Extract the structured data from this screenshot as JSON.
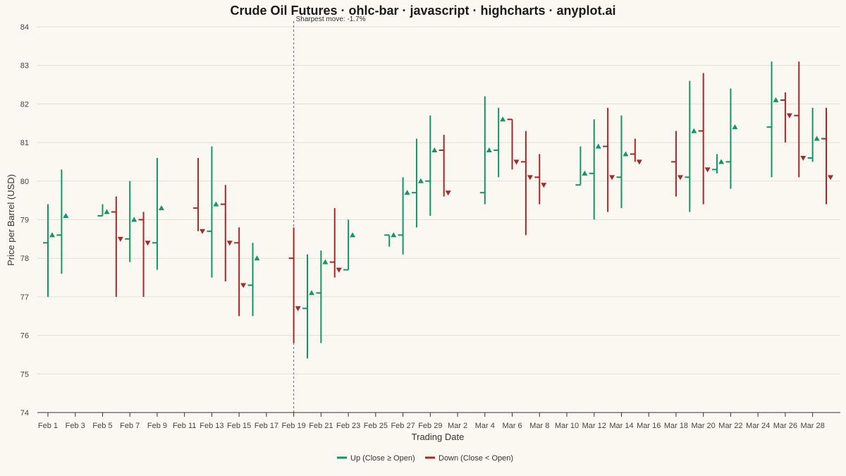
{
  "chart_data": {
    "type": "ohlc",
    "title": "Crude Oil Futures · ohlc-bar · javascript · highcharts · anyplot.ai",
    "xlabel": "Trading Date",
    "ylabel": "Price per Barrel (USD)",
    "ylim": [
      74,
      84
    ],
    "yticks": [
      74,
      75,
      76,
      77,
      78,
      79,
      80,
      81,
      82,
      83,
      84
    ],
    "x_start": "2024-02-01",
    "x_end": "2024-03-29",
    "xticks": [
      {
        "date": "2024-02-01",
        "label": "Feb 1"
      },
      {
        "date": "2024-02-03",
        "label": "Feb 3"
      },
      {
        "date": "2024-02-05",
        "label": "Feb 5"
      },
      {
        "date": "2024-02-07",
        "label": "Feb 7"
      },
      {
        "date": "2024-02-09",
        "label": "Feb 9"
      },
      {
        "date": "2024-02-11",
        "label": "Feb 11"
      },
      {
        "date": "2024-02-13",
        "label": "Feb 13"
      },
      {
        "date": "2024-02-15",
        "label": "Feb 15"
      },
      {
        "date": "2024-02-17",
        "label": "Feb 17"
      },
      {
        "date": "2024-02-19",
        "label": "Feb 19"
      },
      {
        "date": "2024-02-21",
        "label": "Feb 21"
      },
      {
        "date": "2024-02-23",
        "label": "Feb 23"
      },
      {
        "date": "2024-02-25",
        "label": "Feb 25"
      },
      {
        "date": "2024-02-27",
        "label": "Feb 27"
      },
      {
        "date": "2024-02-29",
        "label": "Feb 29"
      },
      {
        "date": "2024-03-02",
        "label": "Mar 2"
      },
      {
        "date": "2024-03-04",
        "label": "Mar 4"
      },
      {
        "date": "2024-03-06",
        "label": "Mar 6"
      },
      {
        "date": "2024-03-08",
        "label": "Mar 8"
      },
      {
        "date": "2024-03-10",
        "label": "Mar 10"
      },
      {
        "date": "2024-03-12",
        "label": "Mar 12"
      },
      {
        "date": "2024-03-14",
        "label": "Mar 14"
      },
      {
        "date": "2024-03-16",
        "label": "Mar 16"
      },
      {
        "date": "2024-03-18",
        "label": "Mar 18"
      },
      {
        "date": "2024-03-20",
        "label": "Mar 20"
      },
      {
        "date": "2024-03-22",
        "label": "Mar 22"
      },
      {
        "date": "2024-03-24",
        "label": "Mar 24"
      },
      {
        "date": "2024-03-26",
        "label": "Mar 26"
      },
      {
        "date": "2024-03-28",
        "label": "Mar 28"
      }
    ],
    "colors": {
      "up": "#109668",
      "down": "#A8282A",
      "grid": "#E1DED6",
      "axis": "#333333",
      "annotation_line": "#666666"
    },
    "grid": true,
    "legend": {
      "position": "bottom-center"
    },
    "series": [
      {
        "name": "Up (Close ≥ Open)",
        "direction": "up"
      },
      {
        "name": "Down (Close < Open)",
        "direction": "down"
      }
    ],
    "annotation": {
      "label": "Sharpest move: -1.7%",
      "date": "2024-02-19"
    },
    "ohlc": [
      {
        "date": "2024-02-01",
        "open": 78.4,
        "high": 79.4,
        "low": 77.0,
        "close": 78.6
      },
      {
        "date": "2024-02-02",
        "open": 78.6,
        "high": 80.3,
        "low": 77.6,
        "close": 79.1
      },
      {
        "date": "2024-02-05",
        "open": 79.1,
        "high": 79.4,
        "low": 79.1,
        "close": 79.2
      },
      {
        "date": "2024-02-06",
        "open": 79.2,
        "high": 79.6,
        "low": 77.0,
        "close": 78.5
      },
      {
        "date": "2024-02-07",
        "open": 78.5,
        "high": 80.0,
        "low": 77.9,
        "close": 79.0
      },
      {
        "date": "2024-02-08",
        "open": 79.0,
        "high": 79.2,
        "low": 77.0,
        "close": 78.4
      },
      {
        "date": "2024-02-09",
        "open": 78.4,
        "high": 80.6,
        "low": 77.7,
        "close": 79.3
      },
      {
        "date": "2024-02-12",
        "open": 79.3,
        "high": 80.6,
        "low": 78.7,
        "close": 78.7
      },
      {
        "date": "2024-02-13",
        "open": 78.7,
        "high": 80.9,
        "low": 77.5,
        "close": 79.4
      },
      {
        "date": "2024-02-14",
        "open": 79.4,
        "high": 79.9,
        "low": 77.4,
        "close": 78.4
      },
      {
        "date": "2024-02-15",
        "open": 78.4,
        "high": 78.8,
        "low": 76.5,
        "close": 77.3
      },
      {
        "date": "2024-02-16",
        "open": 77.3,
        "high": 78.4,
        "low": 76.5,
        "close": 78.0
      },
      {
        "date": "2024-02-19",
        "open": 78.0,
        "high": 78.8,
        "low": 75.8,
        "close": 76.7
      },
      {
        "date": "2024-02-20",
        "open": 76.7,
        "high": 78.1,
        "low": 75.4,
        "close": 77.1
      },
      {
        "date": "2024-02-21",
        "open": 77.1,
        "high": 78.2,
        "low": 75.8,
        "close": 77.9
      },
      {
        "date": "2024-02-22",
        "open": 77.9,
        "high": 79.3,
        "low": 77.5,
        "close": 77.7
      },
      {
        "date": "2024-02-23",
        "open": 77.7,
        "high": 79.0,
        "low": 77.7,
        "close": 78.6
      },
      {
        "date": "2024-02-26",
        "open": 78.6,
        "high": 78.6,
        "low": 78.3,
        "close": 78.6
      },
      {
        "date": "2024-02-27",
        "open": 78.6,
        "high": 80.1,
        "low": 78.1,
        "close": 79.7
      },
      {
        "date": "2024-02-28",
        "open": 79.7,
        "high": 81.1,
        "low": 78.8,
        "close": 80.0
      },
      {
        "date": "2024-02-29",
        "open": 80.0,
        "high": 81.7,
        "low": 79.1,
        "close": 80.8
      },
      {
        "date": "2024-03-01",
        "open": 80.8,
        "high": 81.2,
        "low": 79.6,
        "close": 79.7
      },
      {
        "date": "2024-03-04",
        "open": 79.7,
        "high": 82.2,
        "low": 79.4,
        "close": 80.8
      },
      {
        "date": "2024-03-05",
        "open": 80.8,
        "high": 81.9,
        "low": 80.1,
        "close": 81.6
      },
      {
        "date": "2024-03-06",
        "open": 81.6,
        "high": 81.6,
        "low": 80.3,
        "close": 80.5
      },
      {
        "date": "2024-03-07",
        "open": 80.5,
        "high": 81.3,
        "low": 78.6,
        "close": 80.1
      },
      {
        "date": "2024-03-08",
        "open": 80.1,
        "high": 80.7,
        "low": 79.4,
        "close": 79.9
      },
      {
        "date": "2024-03-11",
        "open": 79.9,
        "high": 80.9,
        "low": 79.9,
        "close": 80.2
      },
      {
        "date": "2024-03-12",
        "open": 80.2,
        "high": 81.6,
        "low": 79.0,
        "close": 80.9
      },
      {
        "date": "2024-03-13",
        "open": 80.9,
        "high": 81.9,
        "low": 79.2,
        "close": 80.1
      },
      {
        "date": "2024-03-14",
        "open": 80.1,
        "high": 81.7,
        "low": 79.3,
        "close": 80.7
      },
      {
        "date": "2024-03-15",
        "open": 80.7,
        "high": 81.1,
        "low": 80.5,
        "close": 80.5
      },
      {
        "date": "2024-03-18",
        "open": 80.5,
        "high": 81.3,
        "low": 79.6,
        "close": 80.1
      },
      {
        "date": "2024-03-19",
        "open": 80.1,
        "high": 82.6,
        "low": 79.2,
        "close": 81.3
      },
      {
        "date": "2024-03-20",
        "open": 81.3,
        "high": 82.8,
        "low": 79.4,
        "close": 80.3
      },
      {
        "date": "2024-03-21",
        "open": 80.3,
        "high": 80.7,
        "low": 80.2,
        "close": 80.5
      },
      {
        "date": "2024-03-22",
        "open": 80.5,
        "high": 82.4,
        "low": 79.8,
        "close": 81.4
      },
      {
        "date": "2024-03-25",
        "open": 81.4,
        "high": 83.1,
        "low": 80.1,
        "close": 82.1
      },
      {
        "date": "2024-03-26",
        "open": 82.1,
        "high": 82.3,
        "low": 81.0,
        "close": 81.7
      },
      {
        "date": "2024-03-27",
        "open": 81.7,
        "high": 83.1,
        "low": 80.1,
        "close": 80.6
      },
      {
        "date": "2024-03-28",
        "open": 80.6,
        "high": 81.9,
        "low": 80.5,
        "close": 81.1
      },
      {
        "date": "2024-03-29",
        "open": 81.1,
        "high": 81.9,
        "low": 79.4,
        "close": 80.1
      }
    ]
  }
}
